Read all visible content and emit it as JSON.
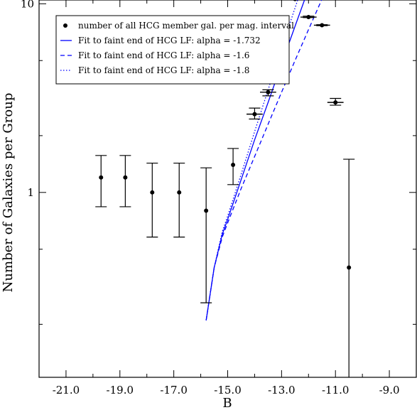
{
  "chart_data": {
    "type": "scatter",
    "title": "",
    "xlabel": "B",
    "ylabel": "Number of Galaxies per Group",
    "xlim": [
      -22.0,
      -8.0
    ],
    "ylim_log10": [
      -0.98,
      1.02
    ],
    "y_scale": "log",
    "x_ticks": [
      "-21.0",
      "-19.0",
      "-17.0",
      "-15.0",
      "-13.0",
      "-11.0",
      "-9.0"
    ],
    "y_ticks": [
      "1",
      "10"
    ],
    "grid": false,
    "legend_position": "top-left",
    "points": {
      "name": "number of all HCG member gal. per mag. interval",
      "x": [
        -19.7,
        -18.8,
        -17.8,
        -16.8,
        -15.8,
        -14.8,
        -14.0,
        -13.5,
        -13.0,
        -12.5,
        -12.0,
        -11.5,
        -11.0,
        -10.5
      ],
      "y": [
        1.2,
        1.2,
        1.0,
        1.0,
        0.8,
        1.4,
        2.6,
        3.4,
        6.6,
        10.6,
        8.5,
        7.7,
        3.0,
        0.4
      ],
      "yerr_low": [
        0.84,
        0.84,
        0.58,
        0.58,
        0.26,
        1.1,
        2.45,
        3.25,
        6.55,
        10.5,
        8.45,
        7.65,
        2.9,
        0.0
      ],
      "yerr_high": [
        1.57,
        1.57,
        1.43,
        1.43,
        1.35,
        1.71,
        2.8,
        3.5,
        6.7,
        10.7,
        8.6,
        7.75,
        3.15,
        1.5
      ],
      "xerr": [
        0,
        0,
        0,
        0,
        0,
        0,
        0.3,
        0.3,
        0.3,
        0.3,
        0.3,
        0.3,
        0.3,
        0
      ]
    },
    "series": [
      {
        "name": "Fit to faint end of HCG LF: alpha = -1.732",
        "style": "solid",
        "color": "#0000ff",
        "x": [
          -15.8,
          -15.5,
          -15.2,
          -15.0,
          -14.5,
          -14.0,
          -13.5,
          -13.0,
          -12.5,
          -12.0,
          -11.5,
          -11.0,
          -10.5,
          -10.0,
          -9.5,
          -9.1
        ],
        "y": [
          0.21,
          0.4,
          0.6,
          0.72,
          1.17,
          1.9,
          3.0,
          4.8,
          7.6,
          12.0,
          19.0,
          30.0,
          48.0,
          76.0,
          120.0,
          166.0
        ]
      },
      {
        "name": "Fit to faint end of HCG LF: alpha = -1.6",
        "style": "dashed",
        "color": "#0000ff",
        "x": [
          -15.8,
          -15.5,
          -15.2,
          -15.0,
          -14.5,
          -14.0,
          -13.5,
          -13.0,
          -12.5,
          -12.0,
          -11.5,
          -11.0,
          -10.5,
          -10.0,
          -9.5,
          -9.0
        ],
        "y": [
          0.21,
          0.4,
          0.58,
          0.69,
          1.05,
          1.55,
          2.3,
          3.4,
          5.0,
          7.3,
          10.6,
          15.2,
          21.0,
          28.0,
          37.0,
          48.0
        ]
      },
      {
        "name": "Fit to faint end of HCG LF: alpha = -1.8",
        "style": "dotted",
        "color": "#0000ff",
        "x": [
          -15.8,
          -15.5,
          -15.2,
          -15.0,
          -14.5,
          -14.0,
          -13.5,
          -13.0,
          -12.5,
          -12.0,
          -11.5,
          -11.0,
          -10.5,
          -10.0,
          -9.5,
          -9.3
        ],
        "y": [
          0.21,
          0.4,
          0.62,
          0.75,
          1.25,
          2.1,
          3.5,
          5.8,
          9.5,
          15.5,
          25.0,
          41.0,
          66.0,
          105.0,
          150.0,
          166.0
        ]
      }
    ]
  }
}
